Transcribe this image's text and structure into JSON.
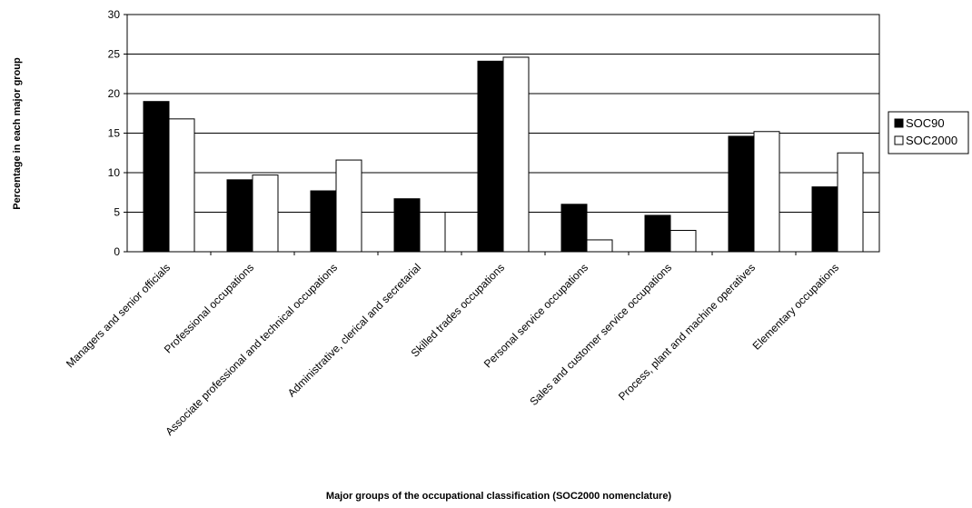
{
  "chart_data": {
    "type": "bar",
    "title": "",
    "xlabel": "Major groups of the occupational classification (SOC2000 nomenclature)",
    "ylabel": "Percentage in each major group",
    "ylim": [
      0,
      30
    ],
    "yticks": [
      0,
      5,
      10,
      15,
      20,
      25,
      30
    ],
    "grid": "horizontal",
    "legend_position": "right",
    "categories": [
      "Managers and senior officials",
      "Professional occupations",
      "Associate professional and technical occupations",
      "Administrative, clerical and secretarial",
      "Skilled trades occupations",
      "Personal service occupations",
      "Sales and customer service occupations",
      "Process, plant and machine operatives",
      "Elementary occupations"
    ],
    "series": [
      {
        "name": "SOC90",
        "color": "#000000",
        "values": [
          19.0,
          9.1,
          7.7,
          6.7,
          24.1,
          6.0,
          4.6,
          14.6,
          8.2
        ]
      },
      {
        "name": "SOC2000",
        "color": "#ffffff",
        "values": [
          16.8,
          9.7,
          11.6,
          5.0,
          24.6,
          1.5,
          2.7,
          15.2,
          12.5
        ]
      }
    ]
  }
}
